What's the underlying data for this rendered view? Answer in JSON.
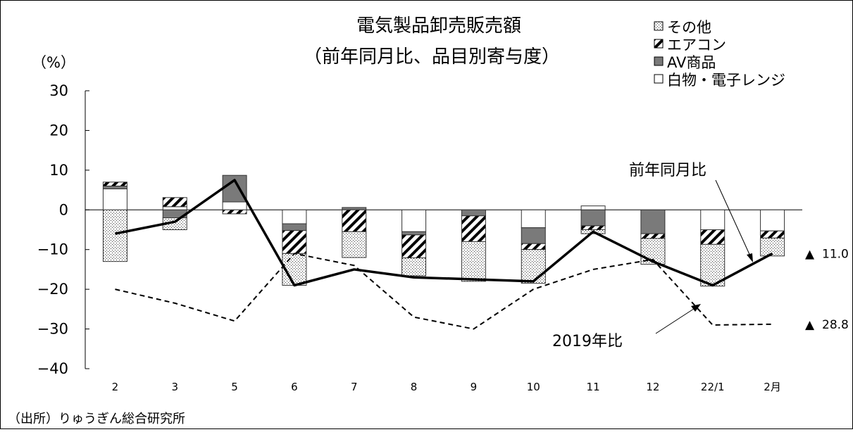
{
  "chart_data": {
    "type": "bar",
    "title": "電気製品卸売販売額",
    "subtitle": "（前年同月比、品目別寄与度）",
    "ylabel": "（%）",
    "ylim": [
      -40,
      30
    ],
    "yticks": [
      30,
      20,
      10,
      0,
      -10,
      -20,
      -30,
      -40
    ],
    "categories": [
      "2",
      "3",
      "5",
      "6",
      "7",
      "8",
      "9",
      "10",
      "11",
      "12",
      "22/1",
      "2月"
    ],
    "stacked_series": [
      {
        "name": "その他",
        "pattern": "dots",
        "values": [
          -13.0,
          -3.0,
          0.0,
          -8.0,
          -6.5,
          -4.5,
          -10.0,
          -8.5,
          -1.0,
          -6.5,
          -10.5,
          -4.5
        ]
      },
      {
        "name": "エアコン",
        "pattern": "hatch",
        "values": [
          1.0,
          2.3,
          -1.0,
          -5.8,
          -5.5,
          -5.8,
          -6.5,
          -1.5,
          -1.0,
          -1.2,
          -3.7,
          -1.8
        ]
      },
      {
        "name": "AV商品",
        "pattern": "gray",
        "values": [
          0.7,
          -2.0,
          6.7,
          -1.7,
          0.6,
          -0.8,
          -1.5,
          -4.0,
          -4.0,
          -6.0,
          0.0,
          0.0
        ]
      },
      {
        "name": "白物・電子レンジ",
        "pattern": "white",
        "values": [
          5.3,
          0.8,
          2.0,
          -3.5,
          0.0,
          -5.5,
          0.0,
          -4.5,
          1.0,
          0.0,
          -5.0,
          -5.3
        ]
      }
    ],
    "lines": [
      {
        "name": "前年同月比",
        "style": "solid",
        "values": [
          -6,
          -3,
          7.5,
          -19,
          -15,
          -17,
          -17.5,
          -18,
          -5.5,
          -13,
          -19,
          -11
        ]
      },
      {
        "name": "2019年比",
        "style": "dashed",
        "values": [
          -20,
          -23.5,
          -28,
          -11,
          -14,
          -27,
          -30,
          -20,
          -15,
          -12.5,
          -29,
          -28.8
        ]
      }
    ],
    "legend_position": "top-right",
    "annotations": [
      {
        "text": "前年同月比",
        "target_series": "前年同月比"
      },
      {
        "text": "2019年比",
        "target_series": "2019年比"
      }
    ],
    "end_labels": [
      {
        "marker": "▲",
        "value": "11.0",
        "series": "前年同月比"
      },
      {
        "marker": "▲",
        "value": "28.8",
        "series": "2019年比"
      }
    ],
    "source": "（出所）りゅうぎん総合研究所"
  }
}
